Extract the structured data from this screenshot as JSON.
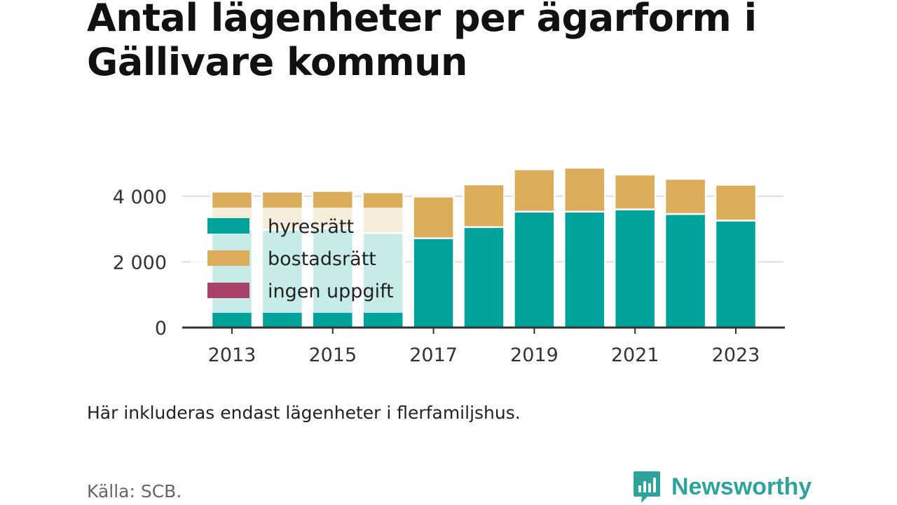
{
  "title": "Antal lägenheter per ägarform i Gällivare kommun",
  "note": "Här inkluderas endast lägenheter i flerfamiljshus.",
  "source": "Källa: SCB.",
  "brand": {
    "name": "Newsworthy",
    "color": "#2ea39c",
    "icon": "chart-logo-icon"
  },
  "chart_data": {
    "type": "bar",
    "stacked": true,
    "categories": [
      "2013",
      "2014",
      "2015",
      "2016",
      "2017",
      "2018",
      "2019",
      "2020",
      "2021",
      "2022",
      "2023"
    ],
    "x_tick_labels": [
      "2013",
      "2015",
      "2017",
      "2019",
      "2021",
      "2023"
    ],
    "y_tick_values": [
      0,
      2000,
      4000
    ],
    "y_tick_labels": [
      "0",
      "2 000",
      "4 000"
    ],
    "ylim": [
      0,
      4900
    ],
    "grid": true,
    "legend_position": "left-inside",
    "series": [
      {
        "name": "hyresrätt",
        "color": "#00a39b",
        "values": [
          3000,
          2980,
          3020,
          2880,
          2720,
          3060,
          3530,
          3530,
          3600,
          3460,
          3260
        ]
      },
      {
        "name": "bostadsrätt",
        "color": "#dbac5a",
        "values": [
          1140,
          1160,
          1140,
          1240,
          1270,
          1300,
          1290,
          1340,
          1060,
          1070,
          1090
        ]
      },
      {
        "name": "ingen uppgift",
        "color": "#a9416a",
        "values": [
          0,
          0,
          0,
          0,
          0,
          0,
          0,
          0,
          0,
          0,
          0
        ]
      }
    ]
  }
}
